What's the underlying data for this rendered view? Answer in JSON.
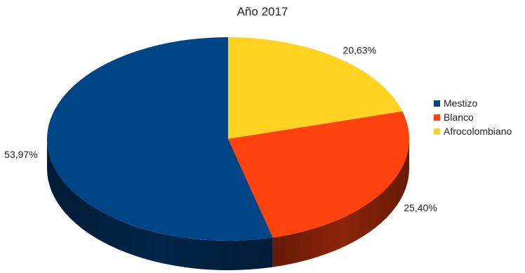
{
  "chart_data": {
    "type": "pie",
    "title": "Año 2017",
    "categories": [
      "Mestizo",
      "Blanco",
      "Afrocolombiano"
    ],
    "values": [
      53.97,
      25.4,
      20.63
    ],
    "labels": [
      "53,97%",
      "25,40%",
      "20,63%"
    ],
    "colors": [
      "#004586",
      "#ff420e",
      "#ffd320"
    ],
    "legend_position": "right",
    "style": "3d"
  }
}
